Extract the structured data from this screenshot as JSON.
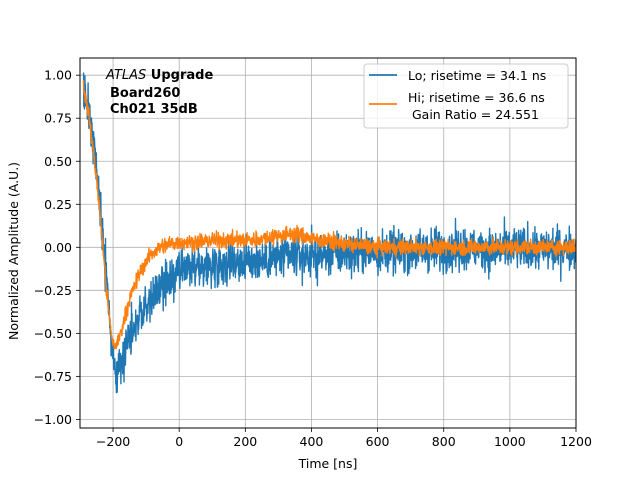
{
  "chart_data": {
    "type": "line",
    "title": "",
    "xlabel": "Time [ns]",
    "ylabel": "Normalized Amplitude (A.U.)",
    "xlim": [
      -300,
      1200
    ],
    "ylim": [
      -1.05,
      1.1
    ],
    "grid": true,
    "x_ticks": [
      -200,
      0,
      200,
      400,
      600,
      800,
      1000,
      1200
    ],
    "y_ticks": [
      -1.0,
      -0.75,
      -0.5,
      -0.25,
      0.0,
      0.25,
      0.5,
      0.75,
      1.0
    ],
    "x_tick_labels": [
      "−200",
      "0",
      "200",
      "400",
      "600",
      "800",
      "1000",
      "1200"
    ],
    "y_tick_labels": [
      "−1.00",
      "−0.75",
      "−0.50",
      "−0.25",
      "0.00",
      "0.25",
      "0.50",
      "0.75",
      "1.00"
    ],
    "annotation": {
      "line1_italic": "ATLAS",
      "line1_bold": " Upgrade",
      "line2": "Board260",
      "line3": "Ch021 35dB"
    },
    "legend": {
      "position": "top-right",
      "entries": [
        "Lo; risetime = 34.1 ns",
        "Hi; risetime = 36.6 ns",
        " Gain Ratio = 24.551"
      ]
    },
    "series": [
      {
        "name": "Lo; risetime = 34.1 ns",
        "color": "#1f77b4",
        "noise": 0.11,
        "x": [
          -290,
          -270,
          -250,
          -235,
          -220,
          -205,
          -195,
          -185,
          -170,
          -150,
          -120,
          -90,
          -60,
          -30,
          0,
          50,
          100,
          150,
          200,
          250,
          300,
          350,
          400,
          500,
          600,
          700,
          800,
          900,
          1000,
          1100,
          1200
        ],
        "y": [
          0.95,
          0.75,
          0.45,
          0.15,
          -0.2,
          -0.55,
          -0.72,
          -0.72,
          -0.62,
          -0.5,
          -0.4,
          -0.32,
          -0.25,
          -0.2,
          -0.15,
          -0.12,
          -0.1,
          -0.08,
          -0.08,
          -0.08,
          -0.06,
          -0.05,
          -0.05,
          -0.03,
          -0.02,
          -0.02,
          -0.01,
          -0.01,
          -0.01,
          -0.01,
          0.0
        ]
      },
      {
        "name": "Hi; risetime = 36.6 ns",
        "color": "#ff7f0e",
        "noise": 0.04,
        "x": [
          -290,
          -270,
          -250,
          -235,
          -220,
          -205,
          -195,
          -185,
          -170,
          -150,
          -120,
          -90,
          -60,
          -30,
          0,
          50,
          100,
          150,
          200,
          250,
          300,
          350,
          400,
          500,
          600,
          700,
          800,
          900,
          1000,
          1100,
          1200
        ],
        "y": [
          0.95,
          0.72,
          0.4,
          0.1,
          -0.25,
          -0.52,
          -0.58,
          -0.55,
          -0.45,
          -0.3,
          -0.15,
          -0.05,
          0.0,
          0.02,
          0.03,
          0.03,
          0.04,
          0.04,
          0.04,
          0.05,
          0.07,
          0.08,
          0.05,
          0.02,
          0.0,
          0.0,
          0.0,
          0.0,
          0.0,
          0.0,
          0.0
        ]
      }
    ]
  }
}
